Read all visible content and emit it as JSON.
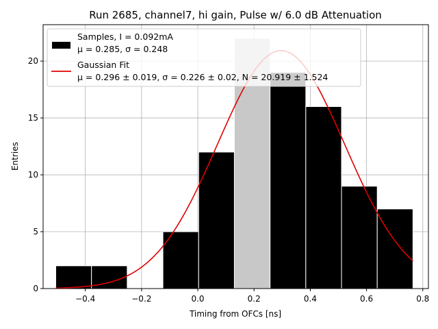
{
  "chart_data": {
    "type": "bar",
    "title": "Run 2685, channel7, hi gain, Pulse w/ 6.0 dB Attenuation",
    "xlabel": "Timing from OFCs [ns]",
    "ylabel": "Entries",
    "xlim": [
      -0.55,
      0.82
    ],
    "ylim": [
      0,
      23.2
    ],
    "grid": true,
    "legend_position": "upper-left",
    "xticks": [
      -0.4,
      -0.2,
      0.0,
      0.2,
      0.4,
      0.6,
      0.8
    ],
    "xtick_labels": [
      "−0.4",
      "−0.2",
      "0.0",
      "0.2",
      "0.4",
      "0.6",
      "0.8"
    ],
    "yticks": [
      0,
      5,
      10,
      15,
      20
    ],
    "ytick_labels": [
      "0",
      "5",
      "10",
      "15",
      "20"
    ],
    "bins": [
      {
        "x0": -0.505,
        "x1": -0.378,
        "value": 2
      },
      {
        "x0": -0.378,
        "x1": -0.251,
        "value": 2
      },
      {
        "x0": -0.251,
        "x1": -0.124,
        "value": 0
      },
      {
        "x0": -0.124,
        "x1": 0.003,
        "value": 5
      },
      {
        "x0": 0.003,
        "x1": 0.13,
        "value": 12
      },
      {
        "x0": 0.13,
        "x1": 0.257,
        "value": 22
      },
      {
        "x0": 0.257,
        "x1": 0.384,
        "value": 19
      },
      {
        "x0": 0.384,
        "x1": 0.511,
        "value": 16
      },
      {
        "x0": 0.511,
        "x1": 0.638,
        "value": 9
      },
      {
        "x0": 0.638,
        "x1": 0.765,
        "value": 7
      }
    ],
    "bar_color": "#000000",
    "bar_edge_color": "#ffffff",
    "highlight_bar_index": 5,
    "highlight_bar_color": "#c8c8c8",
    "fit": {
      "type": "gaussian",
      "mu": 0.296,
      "sigma": 0.226,
      "N": 20.919,
      "x_range": [
        -0.505,
        0.765
      ],
      "color": "#e00000"
    },
    "legend": [
      {
        "kind": "patch",
        "color": "#000000",
        "line1": "Samples, I = 0.092mA",
        "line2": "μ = 0.285, σ = 0.248"
      },
      {
        "kind": "line",
        "color": "#e00000",
        "line1": "Gaussian Fit",
        "line2": "μ = 0.296 ± 0.019, σ = 0.226 ± 0.02, N = 20.919 ± 1.524"
      }
    ]
  }
}
